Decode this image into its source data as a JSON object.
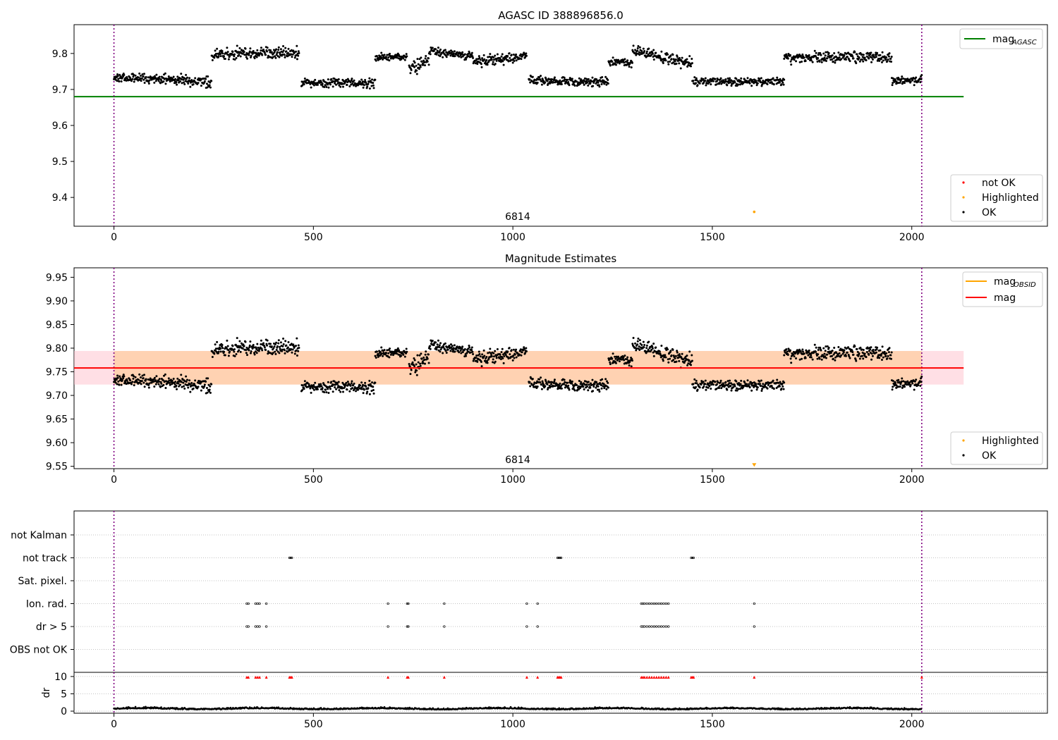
{
  "figure": {
    "title": "AGASC ID 388896856.0"
  },
  "chart_data": [
    {
      "type": "scatter",
      "title": "AGASC ID 388896856.0",
      "xlim": [
        -100,
        2340
      ],
      "ylim": [
        9.32,
        9.88
      ],
      "x_ticks": [
        0,
        500,
        1000,
        1500,
        2000
      ],
      "y_ticks": [
        "9.4",
        "9.5",
        "9.6",
        "9.7",
        "9.8"
      ],
      "y_tick_values": [
        9.4,
        9.5,
        9.6,
        9.7,
        9.8
      ],
      "vlines": [
        0,
        2025
      ],
      "hline": {
        "name": "mag_AGASC",
        "y": 9.68,
        "x": [
          -100,
          2130
        ],
        "color": "#008000"
      },
      "obsid_label": {
        "text": "6814",
        "x": 1012
      },
      "highlighted_point": {
        "x": 1605,
        "y": 9.36,
        "color": "#ffa500"
      },
      "ok_segments": [
        {
          "x": [
            0,
            245
          ],
          "mean": 9.728,
          "spread": 0.012,
          "trend": -0.012
        },
        {
          "x": [
            245,
            465
          ],
          "mean": 9.8,
          "spread": 0.014,
          "trend": 0.0
        },
        {
          "x": [
            470,
            655
          ],
          "mean": 9.718,
          "spread": 0.01,
          "trend": 0.0
        },
        {
          "x": [
            655,
            735
          ],
          "mean": 9.79,
          "spread": 0.01,
          "trend": 0.0
        },
        {
          "x": [
            740,
            790
          ],
          "mean": 9.77,
          "spread": 0.016,
          "trend": 0.02
        },
        {
          "x": [
            790,
            900
          ],
          "mean": 9.8,
          "spread": 0.01,
          "trend": -0.01
        },
        {
          "x": [
            900,
            1035
          ],
          "mean": 9.785,
          "spread": 0.012,
          "trend": 0.015
        },
        {
          "x": [
            1040,
            1240
          ],
          "mean": 9.723,
          "spread": 0.012,
          "trend": -0.005
        },
        {
          "x": [
            1240,
            1300
          ],
          "mean": 9.775,
          "spread": 0.01,
          "trend": 0.0
        },
        {
          "x": [
            1300,
            1450
          ],
          "mean": 9.79,
          "spread": 0.014,
          "trend": -0.04
        },
        {
          "x": [
            1450,
            1680
          ],
          "mean": 9.722,
          "spread": 0.01,
          "trend": 0.0
        },
        {
          "x": [
            1680,
            1950
          ],
          "mean": 9.79,
          "spread": 0.013,
          "trend": 0.0
        },
        {
          "x": [
            1950,
            2025
          ],
          "mean": 9.725,
          "spread": 0.01,
          "trend": 0.0
        }
      ],
      "legend_lines": [
        {
          "label": "mag",
          "sub": "AGASC",
          "color": "#008000"
        }
      ],
      "legend_points": [
        {
          "label": "not OK",
          "color": "#ff0000"
        },
        {
          "label": "Highlighted",
          "color": "#ffa500"
        },
        {
          "label": "OK",
          "color": "#000000"
        }
      ]
    },
    {
      "type": "scatter",
      "title": "Magnitude Estimates",
      "xlim": [
        -100,
        2340
      ],
      "ylim": [
        9.545,
        9.97
      ],
      "x_ticks": [
        0,
        500,
        1000,
        1500,
        2000
      ],
      "y_ticks": [
        "9.55",
        "9.60",
        "9.65",
        "9.70",
        "9.75",
        "9.80",
        "9.85",
        "9.90",
        "9.95"
      ],
      "y_tick_values": [
        9.55,
        9.6,
        9.65,
        9.7,
        9.75,
        9.8,
        9.85,
        9.9,
        9.95
      ],
      "vlines": [
        0,
        2025
      ],
      "mag_line": {
        "name": "mag",
        "y": 9.758,
        "x": [
          -100,
          2130
        ],
        "color": "#ff0000"
      },
      "band": {
        "y": [
          9.723,
          9.794
        ],
        "x": [
          -100,
          2130
        ]
      },
      "obsid_label": {
        "text": "6814",
        "x": 1012
      },
      "highlighted_point": {
        "x": 1605,
        "y": 9.552,
        "color": "#ffa500"
      },
      "legend_lines": [
        {
          "label": "mag",
          "sub": "OBSID",
          "color": "#ffa500"
        },
        {
          "label": "mag",
          "sub": "",
          "color": "#ff0000"
        }
      ],
      "legend_points": [
        {
          "label": "Highlighted",
          "color": "#ffa500"
        },
        {
          "label": "OK",
          "color": "#000000"
        }
      ]
    },
    {
      "type": "scatter",
      "xlim": [
        -100,
        2340
      ],
      "x_ticks": [
        0,
        500,
        1000,
        1500,
        2000
      ],
      "flag_categories": [
        "not Kalman",
        "not track",
        "Sat. pixel.",
        "Ion. rad.",
        "dr > 5",
        "OBS not OK"
      ],
      "flags": {
        "not track": [
          440,
          443,
          446,
          1112,
          1115,
          1118,
          1121,
          1447,
          1450,
          1453
        ],
        "Ion. rad.": [
          333,
          337,
          355,
          360,
          365,
          382,
          687,
          735,
          738,
          828,
          1035,
          1062,
          1322,
          1326,
          1330,
          1336,
          1342,
          1348,
          1354,
          1360,
          1366,
          1372,
          1378,
          1384,
          1390,
          1605
        ],
        "dr > 5": [
          333,
          337,
          355,
          360,
          365,
          382,
          687,
          735,
          738,
          828,
          1035,
          1062,
          1322,
          1326,
          1330,
          1336,
          1342,
          1348,
          1354,
          1360,
          1366,
          1372,
          1378,
          1384,
          1390,
          1605
        ]
      },
      "dr": {
        "ylabel": "dr",
        "y_ticks": [
          0,
          5,
          10
        ],
        "ylim": [
          -0.6,
          11.2
        ],
        "baseline_mean": 0.6,
        "clipped_x": [
          333,
          337,
          355,
          360,
          365,
          382,
          440,
          443,
          446,
          687,
          735,
          738,
          828,
          1035,
          1062,
          1112,
          1115,
          1118,
          1121,
          1322,
          1326,
          1330,
          1336,
          1342,
          1348,
          1354,
          1360,
          1366,
          1372,
          1378,
          1384,
          1390,
          1447,
          1450,
          1453,
          1605,
          2025
        ],
        "clip_color": "#ff0000"
      },
      "vlines": [
        0,
        2025
      ]
    }
  ]
}
